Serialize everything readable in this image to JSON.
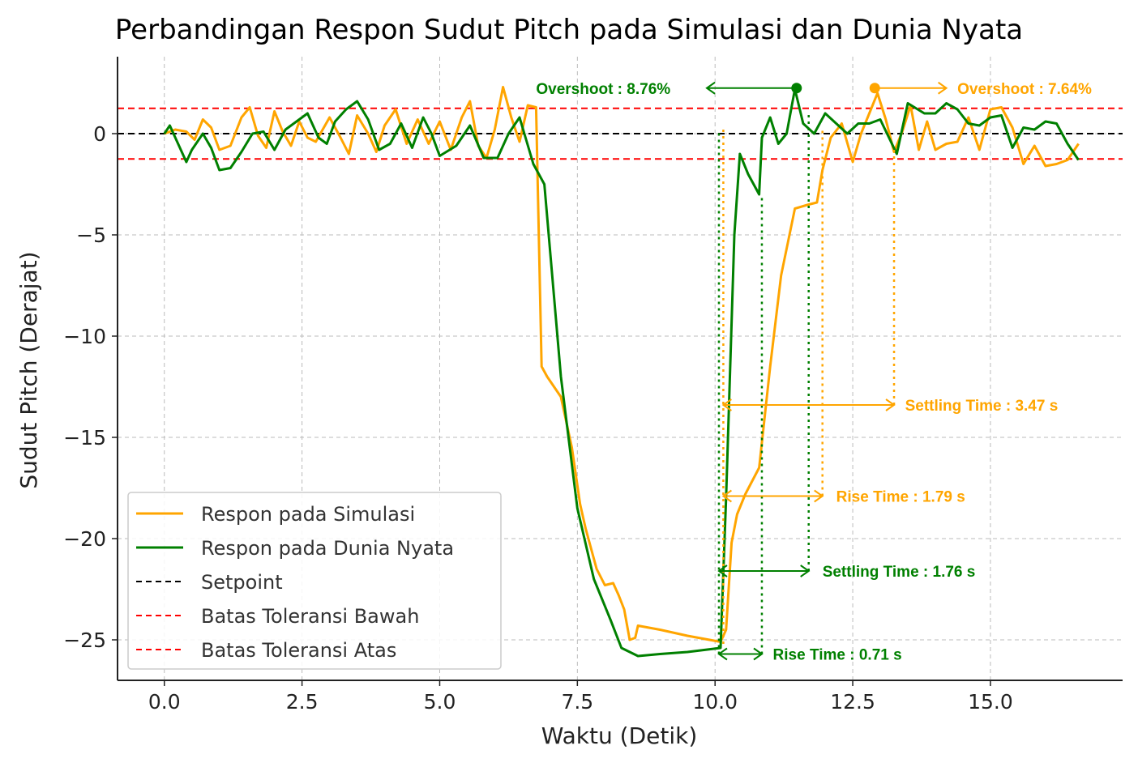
{
  "chart_data": {
    "type": "line",
    "title": "Perbandingan Respon Sudut Pitch pada Simulasi dan Dunia Nyata",
    "xlabel": "Waktu (Detik)",
    "ylabel": "Sudut Pitch (Derajat)",
    "xlim": [
      -0.85,
      17.4
    ],
    "ylim": [
      -27.0,
      3.8
    ],
    "xticks": [
      0.0,
      2.5,
      5.0,
      7.5,
      10.0,
      12.5,
      15.0
    ],
    "xtick_labels": [
      "0.0",
      "2.5",
      "5.0",
      "7.5",
      "10.0",
      "12.5",
      "15.0"
    ],
    "yticks": [
      0,
      -5,
      -10,
      -15,
      -20,
      -25
    ],
    "ytick_labels": [
      "0",
      "−5",
      "−10",
      "−15",
      "−20",
      "−25"
    ],
    "grid": true,
    "legend_position": "lower-left",
    "series": [
      {
        "name": "Respon pada Simulasi",
        "color": "#FFA500",
        "style": "solid",
        "x": [
          0.0,
          0.2,
          0.4,
          0.55,
          0.7,
          0.85,
          1.0,
          1.2,
          1.4,
          1.55,
          1.7,
          1.85,
          2.0,
          2.15,
          2.3,
          2.45,
          2.6,
          2.75,
          3.0,
          3.2,
          3.35,
          3.5,
          3.7,
          3.85,
          4.0,
          4.2,
          4.4,
          4.6,
          4.8,
          5.0,
          5.2,
          5.4,
          5.55,
          5.7,
          5.85,
          6.0,
          6.15,
          6.3,
          6.45,
          6.6,
          6.75,
          6.85,
          6.95,
          7.2,
          7.4,
          7.55,
          7.65,
          7.85,
          8.0,
          8.15,
          8.25,
          8.35,
          8.45,
          8.55,
          8.6,
          9.0,
          9.5,
          10.1,
          10.2,
          10.3,
          10.4,
          10.55,
          10.8,
          11.0,
          11.2,
          11.45,
          11.7,
          11.85,
          11.95,
          12.1,
          12.3,
          12.5,
          12.65,
          12.8,
          12.95,
          13.1,
          13.25,
          13.4,
          13.55,
          13.7,
          13.85,
          14.0,
          14.2,
          14.4,
          14.6,
          14.8,
          15.0,
          15.2,
          15.4,
          15.6,
          15.8,
          16.0,
          16.2,
          16.4,
          16.6
        ],
        "y": [
          0.0,
          0.2,
          0.1,
          -0.3,
          0.7,
          0.3,
          -0.8,
          -0.6,
          0.8,
          1.3,
          -0.1,
          -0.7,
          1.1,
          0.1,
          -0.6,
          0.6,
          -0.2,
          -0.4,
          0.8,
          -0.2,
          -1.0,
          0.9,
          0.0,
          -0.9,
          0.4,
          1.2,
          -0.5,
          0.7,
          -0.5,
          0.6,
          -0.8,
          0.8,
          1.6,
          -0.6,
          -1.2,
          0.2,
          2.3,
          0.8,
          -0.4,
          1.4,
          1.3,
          -11.5,
          -12.0,
          -13.0,
          -15.5,
          -18.3,
          -19.5,
          -21.5,
          -22.3,
          -22.2,
          -22.8,
          -23.5,
          -25.0,
          -24.9,
          -24.3,
          -24.5,
          -24.8,
          -25.1,
          -24.5,
          -20.2,
          -18.8,
          -17.8,
          -16.5,
          -11.5,
          -7.0,
          -3.7,
          -3.5,
          -3.4,
          -1.8,
          -0.2,
          0.5,
          -1.4,
          0.0,
          1.0,
          2.0,
          0.7,
          -0.9,
          0.1,
          1.4,
          -0.8,
          0.6,
          -0.8,
          -0.5,
          -0.4,
          0.8,
          -0.8,
          1.2,
          1.3,
          0.3,
          -1.5,
          -0.6,
          -1.6,
          -1.5,
          -1.3,
          -0.5
        ]
      },
      {
        "name": "Respon pada Dunia Nyata",
        "color": "#008000",
        "style": "solid",
        "x": [
          0.0,
          0.1,
          0.25,
          0.4,
          0.5,
          0.7,
          0.85,
          1.0,
          1.2,
          1.4,
          1.6,
          1.8,
          2.0,
          2.2,
          2.4,
          2.6,
          2.8,
          2.95,
          3.1,
          3.3,
          3.5,
          3.7,
          3.9,
          4.1,
          4.3,
          4.5,
          4.7,
          4.85,
          5.0,
          5.3,
          5.55,
          5.8,
          6.05,
          6.25,
          6.45,
          6.7,
          6.9,
          7.2,
          7.5,
          7.8,
          8.1,
          8.3,
          8.6,
          9.0,
          9.5,
          10.1,
          10.2,
          10.35,
          10.45,
          10.6,
          10.8,
          10.85,
          11.0,
          11.15,
          11.3,
          11.45,
          11.6,
          11.8,
          12.0,
          12.2,
          12.4,
          12.6,
          12.8,
          13.0,
          13.3,
          13.5,
          13.8,
          14.0,
          14.2,
          14.4,
          14.6,
          14.8,
          15.0,
          15.2,
          15.4,
          15.6,
          15.8,
          16.0,
          16.2,
          16.4,
          16.6
        ],
        "y": [
          0.0,
          0.4,
          -0.5,
          -1.4,
          -0.8,
          0.0,
          -0.7,
          -1.8,
          -1.7,
          -0.9,
          0.0,
          0.1,
          -0.8,
          0.2,
          0.6,
          1.0,
          -0.2,
          -0.5,
          0.6,
          1.2,
          1.6,
          0.7,
          -0.8,
          -0.5,
          0.5,
          -0.7,
          0.8,
          0.0,
          -1.1,
          -0.6,
          0.4,
          -1.2,
          -1.2,
          0.0,
          0.8,
          -1.5,
          -2.5,
          -12.0,
          -18.5,
          -22.0,
          -24.0,
          -25.4,
          -25.8,
          -25.7,
          -25.6,
          -25.4,
          -18.0,
          -5.0,
          -1.0,
          -2.0,
          -3.0,
          -0.2,
          0.8,
          -0.5,
          0.0,
          2.2,
          0.5,
          0.0,
          1.0,
          0.5,
          0.0,
          0.5,
          0.5,
          0.7,
          -1.0,
          1.5,
          1.0,
          1.0,
          1.5,
          1.2,
          0.5,
          0.4,
          0.8,
          0.9,
          -0.7,
          0.3,
          0.2,
          0.6,
          0.5,
          -0.5,
          -1.3
        ]
      },
      {
        "name": "Setpoint",
        "color": "#000000",
        "style": "dashed",
        "x": [
          -0.85,
          17.4
        ],
        "y": [
          0,
          0
        ]
      },
      {
        "name": "Batas Toleransi Bawah",
        "color": "#FF0000",
        "style": "dashed",
        "x": [
          -0.85,
          17.4
        ],
        "y": [
          -1.25,
          -1.25
        ]
      },
      {
        "name": "Batas Toleransi Atas",
        "color": "#FF0000",
        "style": "dashed",
        "x": [
          -0.85,
          17.4
        ],
        "y": [
          1.25,
          1.25
        ]
      }
    ],
    "annotations": [
      {
        "text": "Overshoot : 8.76%",
        "color": "#008000",
        "marker": [
          11.48,
          2.25
        ],
        "arrow": [
          [
            11.48,
            2.25
          ],
          [
            9.85,
            2.25
          ]
        ],
        "text_at": [
          6.75,
          2.25
        ],
        "anchor": "start"
      },
      {
        "text": "Overshoot : 7.64%",
        "color": "#FFA500",
        "marker": [
          12.9,
          2.25
        ],
        "arrow": [
          [
            12.9,
            2.25
          ],
          [
            14.2,
            2.25
          ]
        ],
        "text_at": [
          14.4,
          2.25
        ],
        "anchor": "start"
      },
      {
        "text": "Settling Time : 3.47 s",
        "color": "#FFA500",
        "arrow2": [
          [
            10.15,
            -13.4
          ],
          [
            13.25,
            -13.4
          ]
        ],
        "text_at": [
          13.45,
          -13.4
        ],
        "anchor": "start"
      },
      {
        "text": "Rise Time : 1.79 s",
        "color": "#FFA500",
        "arrow2": [
          [
            10.15,
            -17.9
          ],
          [
            11.95,
            -17.9
          ]
        ],
        "text_at": [
          12.2,
          -17.9
        ],
        "anchor": "start"
      },
      {
        "text": "Settling Time : 1.76 s",
        "color": "#008000",
        "arrow2": [
          [
            10.07,
            -21.6
          ],
          [
            11.7,
            -21.6
          ]
        ],
        "text_at": [
          11.95,
          -21.6
        ],
        "anchor": "start"
      },
      {
        "text": "Rise Time : 0.71 s",
        "color": "#008000",
        "arrow2": [
          [
            10.07,
            -25.7
          ],
          [
            10.85,
            -25.7
          ]
        ],
        "text_at": [
          11.05,
          -25.7
        ],
        "anchor": "start"
      }
    ],
    "vlines": [
      {
        "x": 10.15,
        "y": [
          -25.2,
          0.2
        ],
        "color": "#FFA500"
      },
      {
        "x": 11.95,
        "y": [
          -17.9,
          0.3
        ],
        "color": "#FFA500"
      },
      {
        "x": 13.25,
        "y": [
          -13.4,
          -0.7
        ],
        "color": "#FFA500"
      },
      {
        "x": 10.07,
        "y": [
          -25.7,
          0.2
        ],
        "color": "#008000"
      },
      {
        "x": 10.85,
        "y": [
          -25.7,
          -3.0
        ],
        "color": "#008000"
      },
      {
        "x": 11.7,
        "y": [
          -21.6,
          1.0
        ],
        "color": "#008000"
      }
    ]
  }
}
